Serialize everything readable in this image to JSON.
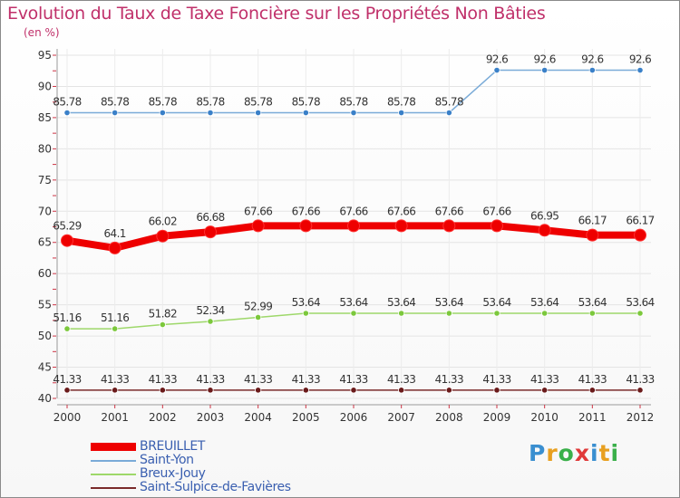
{
  "header": {
    "title": "Evolution du Taux de Taxe Foncière sur les Propriétés Non Bâties",
    "unit": "(en %)"
  },
  "logo": {
    "letters": [
      "P",
      "r",
      "o",
      "x",
      "i",
      "t",
      "i"
    ],
    "colors": [
      "#3a8fd0",
      "#e8a020",
      "#3ab04a",
      "#e03a3a",
      "#3a8fd0",
      "#e8a020",
      "#3ab04a"
    ]
  },
  "chart_data": {
    "type": "line",
    "title": "Evolution du Taux de Taxe Foncière sur les Propriétés Non Bâties",
    "ylabel": "(en %)",
    "xlabel": "",
    "ylim": [
      40,
      95
    ],
    "yticks": [
      40,
      45,
      50,
      55,
      60,
      65,
      70,
      75,
      80,
      85,
      90,
      95
    ],
    "categories": [
      "2000",
      "2001",
      "2002",
      "2003",
      "2004",
      "2005",
      "2006",
      "2007",
      "2008",
      "2009",
      "2010",
      "2011",
      "2012"
    ],
    "grid": true,
    "legend_position": "bottom-left",
    "series": [
      {
        "name": "BREUILLET",
        "color": "#ee0000",
        "marker": "#ee0000",
        "style": "thick",
        "values": [
          65.29,
          64.1,
          66.02,
          66.68,
          67.66,
          67.66,
          67.66,
          67.66,
          67.66,
          67.66,
          66.95,
          66.17,
          66.17
        ],
        "labels": [
          "65.29",
          "64.1",
          "66.02",
          "66.68",
          "67.66",
          "67.66",
          "67.66",
          "67.66",
          "67.66",
          "67.66",
          "66.95",
          "66.17",
          "66.17"
        ]
      },
      {
        "name": "Saint-Yon",
        "color": "#7aabd8",
        "marker": "#3a80c8",
        "style": "thin",
        "values": [
          85.78,
          85.78,
          85.78,
          85.78,
          85.78,
          85.78,
          85.78,
          85.78,
          85.78,
          92.6,
          92.6,
          92.6,
          92.6
        ],
        "labels": [
          "85.78",
          "85.78",
          "85.78",
          "85.78",
          "85.78",
          "85.78",
          "85.78",
          "85.78",
          "85.78",
          "92.6",
          "92.6",
          "92.6",
          "92.6"
        ]
      },
      {
        "name": "Breux-Jouy",
        "color": "#9ed86a",
        "marker": "#7cc83c",
        "style": "thin",
        "values": [
          51.16,
          51.16,
          51.82,
          52.34,
          52.99,
          53.64,
          53.64,
          53.64,
          53.64,
          53.64,
          53.64,
          53.64,
          53.64
        ],
        "labels": [
          "51.16",
          "51.16",
          "51.82",
          "52.34",
          "52.99",
          "53.64",
          "53.64",
          "53.64",
          "53.64",
          "53.64",
          "53.64",
          "53.64",
          "53.64"
        ]
      },
      {
        "name": "Saint-Sulpice-de-Favières",
        "color": "#7a2a2a",
        "marker": "#6a1a1a",
        "style": "thin",
        "values": [
          41.33,
          41.33,
          41.33,
          41.33,
          41.33,
          41.33,
          41.33,
          41.33,
          41.33,
          41.33,
          41.33,
          41.33,
          41.33
        ],
        "labels": [
          "41.33",
          "41.33",
          "41.33",
          "41.33",
          "41.33",
          "41.33",
          "41.33",
          "41.33",
          "41.33",
          "41.33",
          "41.33",
          "41.33",
          "41.33"
        ]
      }
    ]
  }
}
